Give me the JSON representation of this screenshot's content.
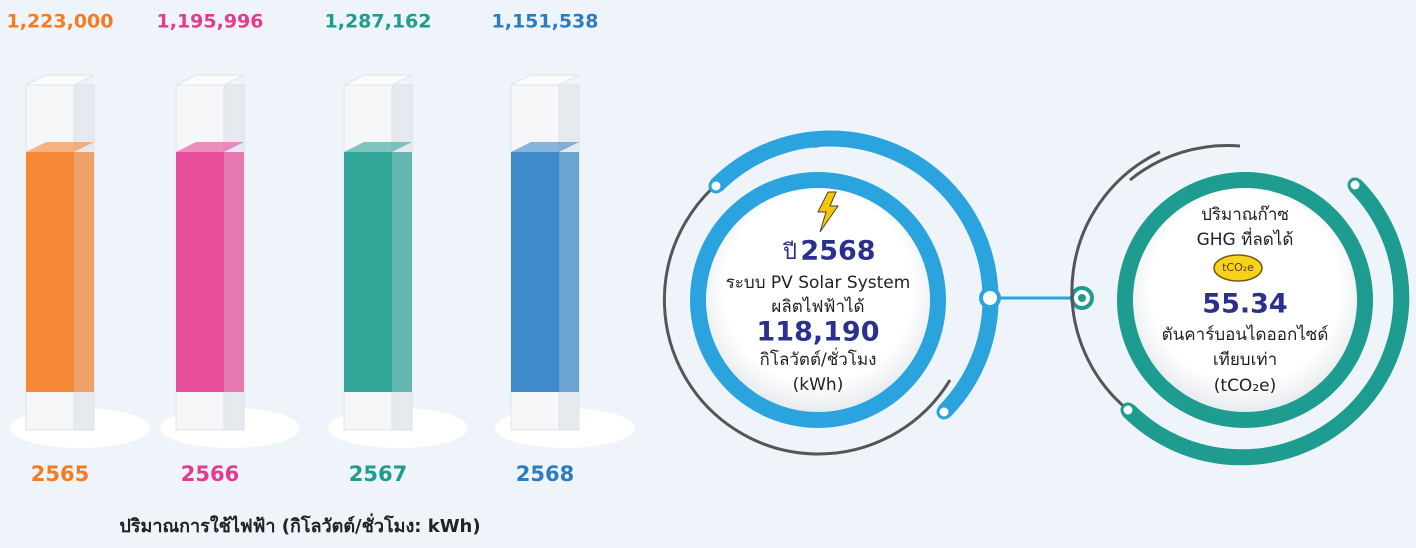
{
  "columns": [
    {
      "value": "1,223,000",
      "year": "2565",
      "color": "#f47b20"
    },
    {
      "value": "1,195,996",
      "year": "2566",
      "color": "#e43a8f"
    },
    {
      "value": "1,287,162",
      "year": "2567",
      "color": "#1e9c8f"
    },
    {
      "value": "1,151,538",
      "year": "2568",
      "color": "#2a7dc4"
    }
  ],
  "caption": "ปริมาณการใช้ไฟฟ้า (กิโลวัตต์/ชั่วโมง: kWh)",
  "solar": {
    "year_prefix": "ปี",
    "year": "2568",
    "line1": "ระบบ PV Solar System",
    "line2": "ผลิตไฟฟ้าได้",
    "amount": "118,190",
    "unit": "กิโลวัตต์/ชั่วโมง",
    "unit_short": "(kWh)"
  },
  "ghg": {
    "line1": "ปริมาณก๊าซ",
    "line2": "GHG ที่ลดได้",
    "badge": "tCO₂e",
    "amount": "55.34",
    "unit": "ตันคาร์บอนไดออกไซด์",
    "unit2": "เทียบเท่า",
    "unit_short": "(tCO₂e)"
  }
}
